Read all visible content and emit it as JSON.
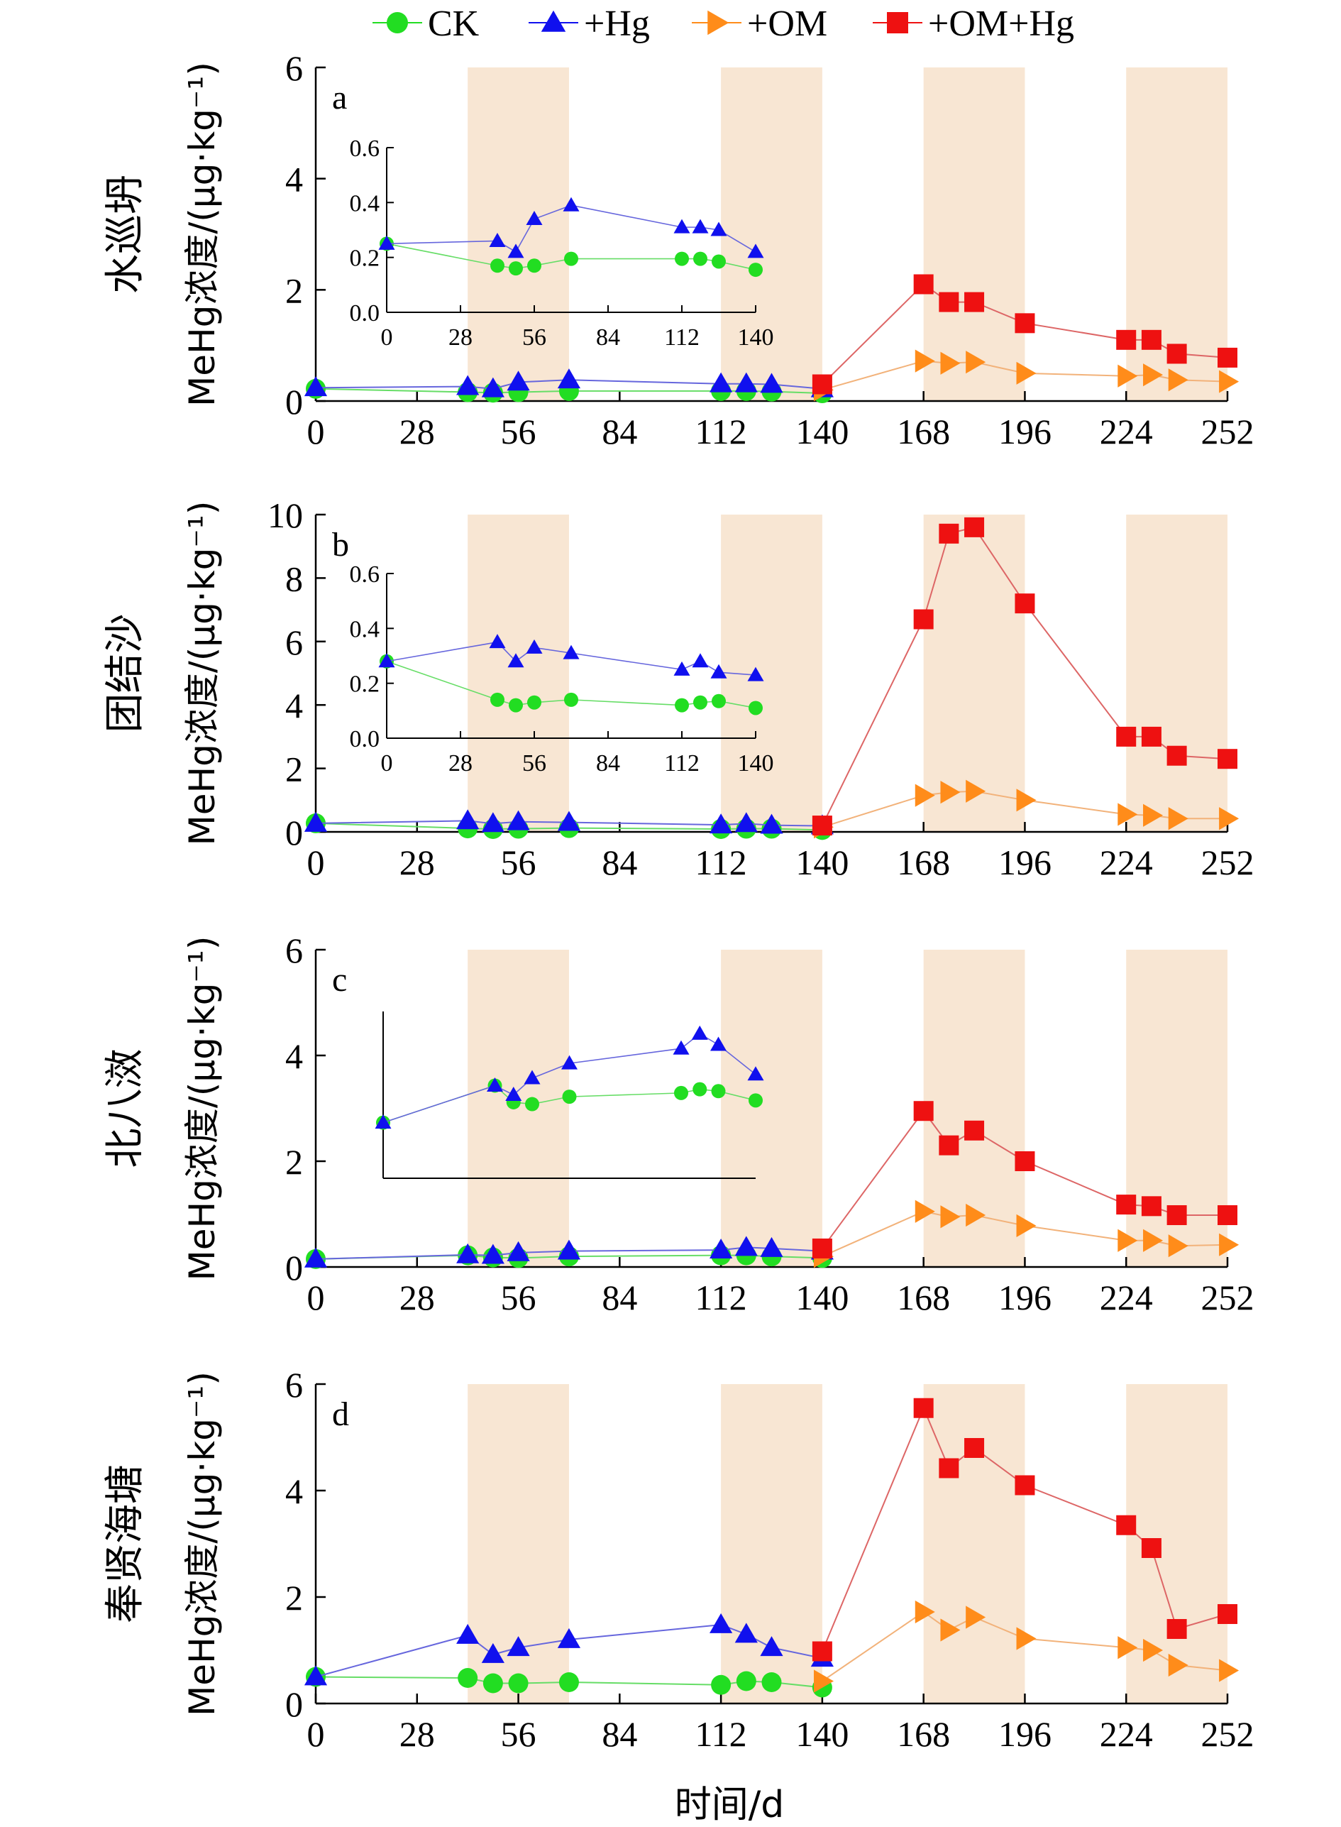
{
  "legend": [
    {
      "label": "CK",
      "marker": "circle",
      "color": "#22dd22"
    },
    {
      "label": "+Hg",
      "marker": "triangle-up",
      "color": "#1010ee"
    },
    {
      "label": "+OM",
      "marker": "triangle-right",
      "color": "#ff8c1a"
    },
    {
      "label": "+OM+Hg",
      "marker": "square",
      "color": "#ee1111"
    }
  ],
  "xlabel": "时间/d",
  "ylabel": "MeHg浓度/(μg·kg⁻¹)",
  "colors": {
    "CK": "#22dd22",
    "Hg": "#1010ee",
    "OM": "#ff8c1a",
    "OMHg": "#ee1111",
    "CK_line": "#66dd66",
    "Hg_line": "#6666dd",
    "OM_line": "#f2b27a",
    "OMHg_line": "#dd6666",
    "shade": "#f8e6d3"
  },
  "chart_data": [
    {
      "type": "line",
      "panel": "a",
      "site": "水巡坍",
      "xlim": [
        0,
        252
      ],
      "ylim": [
        0,
        6
      ],
      "xticks": [
        0,
        28,
        56,
        84,
        112,
        140,
        168,
        196,
        224,
        252
      ],
      "yticks": [
        0,
        2,
        4,
        6
      ],
      "shaded_x": [
        [
          42,
          70
        ],
        [
          112,
          140
        ],
        [
          168,
          196
        ],
        [
          224,
          252
        ]
      ],
      "series": [
        {
          "name": "CK",
          "x": [
            0,
            42,
            49,
            56,
            70,
            112,
            119,
            126,
            140
          ],
          "y": [
            0.22,
            0.16,
            0.15,
            0.16,
            0.18,
            0.18,
            0.18,
            0.17,
            0.14
          ]
        },
        {
          "name": "+Hg",
          "x": [
            0,
            42,
            49,
            56,
            70,
            112,
            119,
            126,
            140
          ],
          "y": [
            0.24,
            0.26,
            0.22,
            0.34,
            0.38,
            0.31,
            0.31,
            0.3,
            0.22
          ]
        },
        {
          "name": "+OM",
          "x": [
            140,
            168,
            175,
            182,
            196,
            224,
            231,
            238,
            252
          ],
          "y": [
            0.2,
            0.72,
            0.68,
            0.7,
            0.5,
            0.45,
            0.47,
            0.38,
            0.35
          ]
        },
        {
          "name": "+OM+Hg",
          "x": [
            140,
            168,
            175,
            182,
            196,
            224,
            231,
            238,
            252
          ],
          "y": [
            0.3,
            2.1,
            1.78,
            1.78,
            1.4,
            1.1,
            1.1,
            0.85,
            0.78
          ]
        }
      ],
      "inset": {
        "xlim": [
          0,
          140
        ],
        "ylim": [
          0,
          0.6
        ],
        "xticks": [
          0,
          28,
          56,
          84,
          112,
          140
        ],
        "yticks": [
          0.0,
          0.2,
          0.4,
          0.6
        ],
        "series": [
          {
            "name": "CK",
            "x": [
              0,
              42,
              49,
              56,
              70,
              112,
              119,
              126,
              140
            ],
            "y": [
              0.25,
              0.17,
              0.16,
              0.17,
              0.195,
              0.195,
              0.195,
              0.185,
              0.155
            ]
          },
          {
            "name": "+Hg",
            "x": [
              0,
              42,
              49,
              56,
              70,
              112,
              119,
              126,
              140
            ],
            "y": [
              0.25,
              0.26,
              0.22,
              0.34,
              0.39,
              0.31,
              0.31,
              0.3,
              0.22
            ]
          }
        ]
      }
    },
    {
      "type": "line",
      "panel": "b",
      "site": "团结沙",
      "xlim": [
        0,
        252
      ],
      "ylim": [
        0,
        10
      ],
      "xticks": [
        0,
        28,
        56,
        84,
        112,
        140,
        168,
        196,
        224,
        252
      ],
      "yticks": [
        0,
        2,
        4,
        6,
        8,
        10
      ],
      "shaded_x": [
        [
          42,
          70
        ],
        [
          112,
          140
        ],
        [
          168,
          196
        ],
        [
          224,
          252
        ]
      ],
      "series": [
        {
          "name": "CK",
          "x": [
            0,
            42,
            49,
            56,
            70,
            112,
            119,
            126,
            140
          ],
          "y": [
            0.27,
            0.11,
            0.09,
            0.1,
            0.12,
            0.09,
            0.1,
            0.1,
            0.06
          ]
        },
        {
          "name": "+Hg",
          "x": [
            0,
            42,
            49,
            56,
            70,
            112,
            119,
            126,
            140
          ],
          "y": [
            0.27,
            0.35,
            0.26,
            0.32,
            0.3,
            0.22,
            0.26,
            0.21,
            0.19
          ]
        },
        {
          "name": "+OM",
          "x": [
            140,
            168,
            175,
            182,
            196,
            224,
            231,
            238,
            252
          ],
          "y": [
            0.15,
            1.15,
            1.25,
            1.28,
            1.0,
            0.55,
            0.52,
            0.42,
            0.42
          ]
        },
        {
          "name": "+OM+Hg",
          "x": [
            140,
            168,
            175,
            182,
            196,
            224,
            231,
            238,
            252
          ],
          "y": [
            0.2,
            6.7,
            9.4,
            9.6,
            7.2,
            3.0,
            3.0,
            2.4,
            2.3
          ]
        }
      ],
      "inset": {
        "xlim": [
          0,
          140
        ],
        "ylim": [
          0,
          0.6
        ],
        "xticks": [
          0,
          28,
          56,
          84,
          112,
          140
        ],
        "yticks": [
          0.0,
          0.2,
          0.4,
          0.6
        ],
        "series": [
          {
            "name": "CK",
            "x": [
              0,
              42,
              49,
              56,
              70,
              112,
              119,
              126,
              140
            ],
            "y": [
              0.28,
              0.14,
              0.12,
              0.13,
              0.14,
              0.12,
              0.13,
              0.135,
              0.11
            ]
          },
          {
            "name": "+Hg",
            "x": [
              0,
              42,
              49,
              56,
              70,
              112,
              119,
              126,
              140
            ],
            "y": [
              0.28,
              0.35,
              0.28,
              0.33,
              0.31,
              0.25,
              0.28,
              0.24,
              0.23
            ]
          }
        ]
      }
    },
    {
      "type": "line",
      "panel": "c",
      "site": "北八滧",
      "xlim": [
        0,
        252
      ],
      "ylim": [
        0,
        6
      ],
      "xticks": [
        0,
        28,
        56,
        84,
        112,
        140,
        168,
        196,
        224,
        252
      ],
      "yticks": [
        0,
        2,
        4,
        6
      ],
      "shaded_x": [
        [
          42,
          70
        ],
        [
          112,
          140
        ],
        [
          168,
          196
        ],
        [
          224,
          252
        ]
      ],
      "series": [
        {
          "name": "CK",
          "x": [
            0,
            42,
            49,
            56,
            70,
            112,
            119,
            126,
            140
          ],
          "y": [
            0.15,
            0.22,
            0.18,
            0.17,
            0.2,
            0.22,
            0.22,
            0.2,
            0.17
          ]
        },
        {
          "name": "+Hg",
          "x": [
            0,
            42,
            49,
            56,
            70,
            112,
            119,
            126,
            140
          ],
          "y": [
            0.15,
            0.23,
            0.22,
            0.27,
            0.3,
            0.32,
            0.37,
            0.35,
            0.3
          ]
        },
        {
          "name": "+OM",
          "x": [
            140,
            168,
            175,
            182,
            196,
            224,
            231,
            238,
            252
          ],
          "y": [
            0.2,
            1.05,
            0.95,
            0.98,
            0.78,
            0.5,
            0.5,
            0.4,
            0.42
          ]
        },
        {
          "name": "+OM+Hg",
          "x": [
            140,
            168,
            175,
            182,
            196,
            224,
            231,
            238,
            252
          ],
          "y": [
            0.35,
            2.95,
            2.3,
            2.58,
            2.0,
            1.18,
            1.15,
            0.98,
            0.98
          ]
        }
      ],
      "inset": {
        "xlim": [
          0,
          140
        ],
        "ylim": [
          0,
          0.45
        ],
        "series": [
          {
            "name": "CK",
            "x": [
              0,
              42,
              49,
              56,
              70,
              112,
              119,
              126,
              140
            ],
            "y": [
              0.15,
              0.25,
              0.205,
              0.2,
              0.22,
              0.23,
              0.24,
              0.235,
              0.21
            ]
          },
          {
            "name": "+Hg",
            "x": [
              0,
              42,
              49,
              56,
              70,
              112,
              119,
              126,
              140
            ],
            "y": [
              0.15,
              0.25,
              0.225,
              0.27,
              0.31,
              0.35,
              0.39,
              0.36,
              0.28
            ]
          }
        ]
      }
    },
    {
      "type": "line",
      "panel": "d",
      "site": "奉贤海塘",
      "xlim": [
        0,
        252
      ],
      "ylim": [
        0,
        6
      ],
      "xticks": [
        0,
        28,
        56,
        84,
        112,
        140,
        168,
        196,
        224,
        252
      ],
      "yticks": [
        0,
        2,
        4,
        6
      ],
      "shaded_x": [
        [
          42,
          70
        ],
        [
          112,
          140
        ],
        [
          168,
          196
        ],
        [
          224,
          252
        ]
      ],
      "series": [
        {
          "name": "CK",
          "x": [
            0,
            42,
            49,
            56,
            70,
            112,
            119,
            126,
            140
          ],
          "y": [
            0.5,
            0.48,
            0.38,
            0.38,
            0.4,
            0.35,
            0.42,
            0.4,
            0.3
          ]
        },
        {
          "name": "+Hg",
          "x": [
            0,
            42,
            49,
            56,
            70,
            112,
            119,
            126,
            140
          ],
          "y": [
            0.5,
            1.28,
            0.92,
            1.05,
            1.2,
            1.48,
            1.3,
            1.05,
            0.85
          ]
        },
        {
          "name": "+OM",
          "x": [
            140,
            168,
            175,
            182,
            196,
            224,
            231,
            238,
            252
          ],
          "y": [
            0.42,
            1.72,
            1.38,
            1.62,
            1.22,
            1.05,
            1.0,
            0.72,
            0.62
          ]
        },
        {
          "name": "+OM+Hg",
          "x": [
            140,
            168,
            175,
            182,
            196,
            224,
            231,
            238,
            252
          ],
          "y": [
            0.98,
            5.55,
            4.42,
            4.8,
            4.1,
            3.35,
            2.92,
            1.4,
            1.68
          ]
        }
      ]
    }
  ]
}
